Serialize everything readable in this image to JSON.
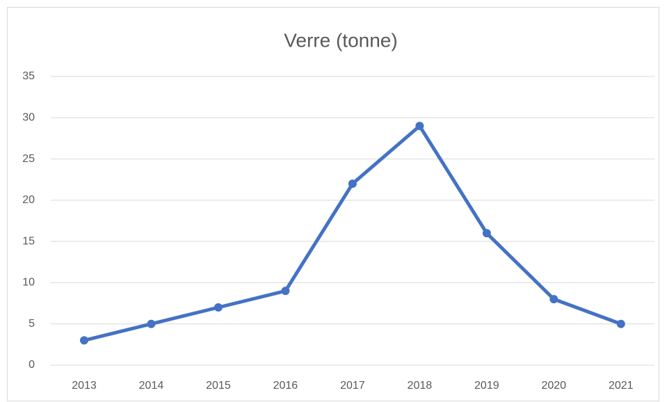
{
  "chart_data": {
    "type": "line",
    "title": "Verre (tonne)",
    "categories": [
      "2013",
      "2014",
      "2015",
      "2016",
      "2017",
      "2018",
      "2019",
      "2020",
      "2021"
    ],
    "values": [
      3,
      5,
      7,
      9,
      22,
      29,
      16,
      8,
      5
    ],
    "color": "#4472c4",
    "ylim": [
      0,
      35
    ],
    "yticks": [
      0,
      5,
      10,
      15,
      20,
      25,
      30,
      35
    ],
    "grid": true
  }
}
